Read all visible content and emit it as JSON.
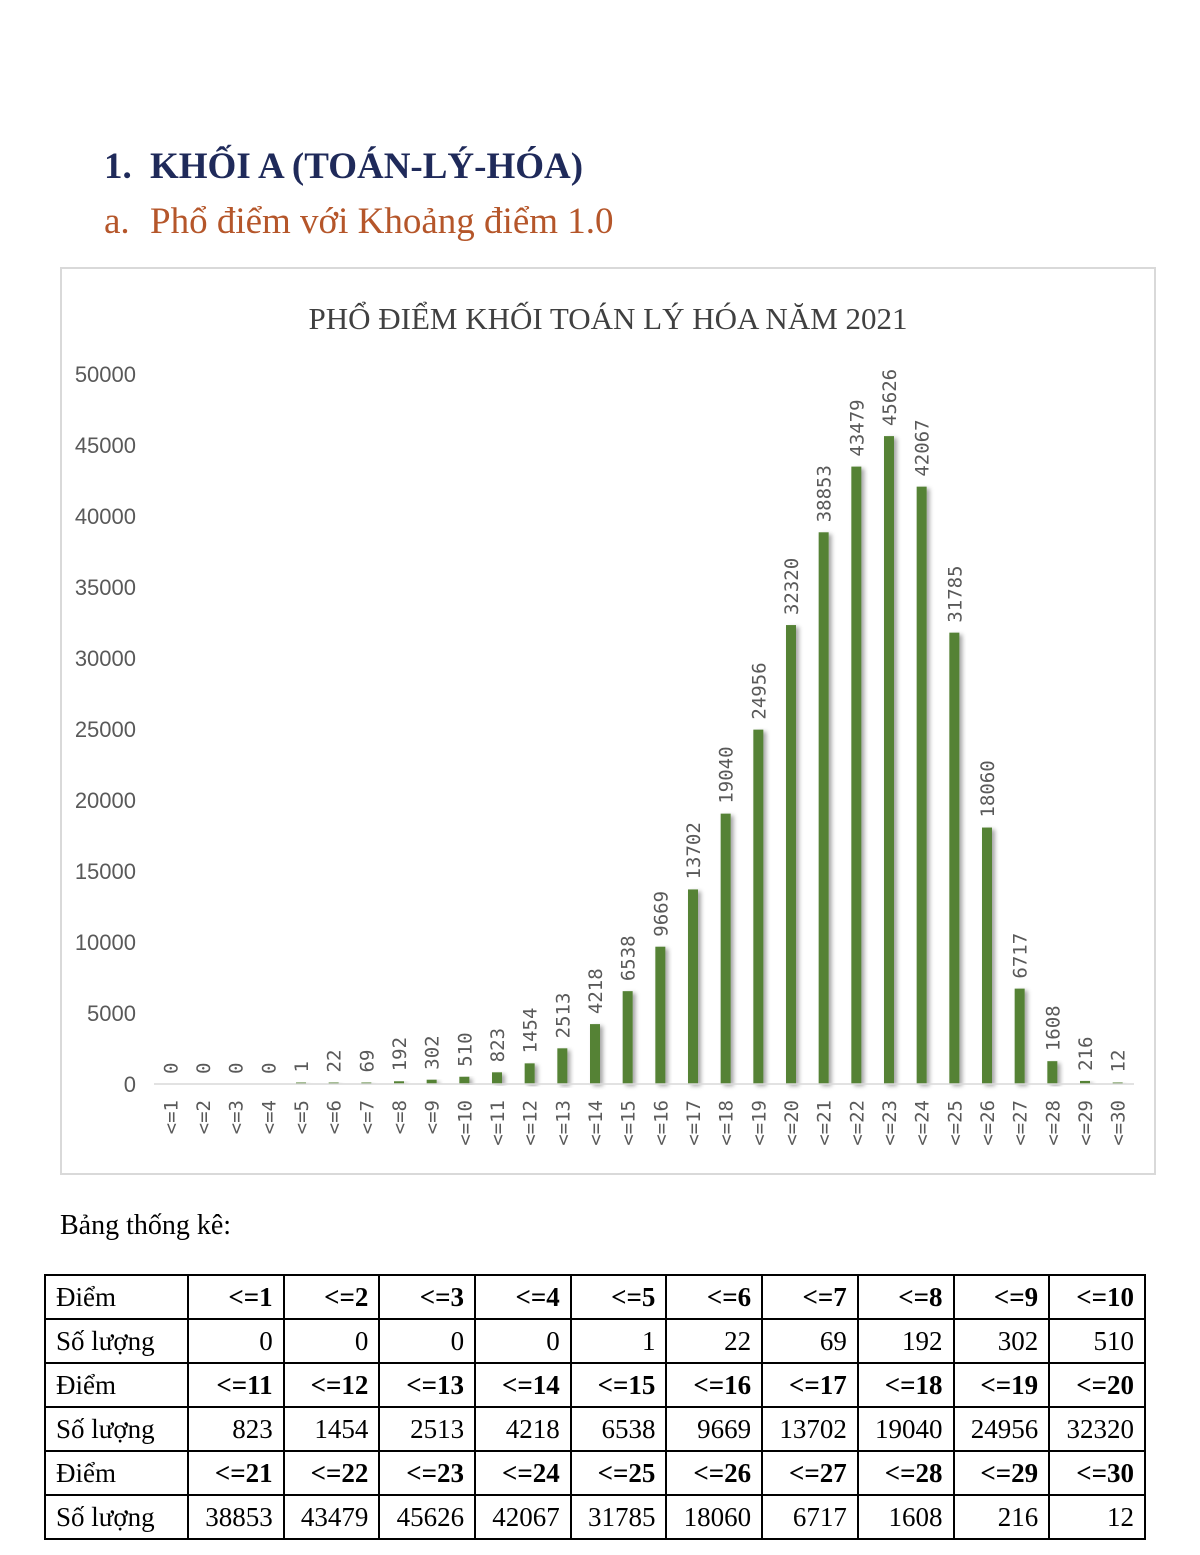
{
  "heading": {
    "number": "1.",
    "text": "KHỐI A (TOÁN-LÝ-HÓA)"
  },
  "subheading": {
    "letter": "a.",
    "text": "Phổ điểm với Khoảng điểm 1.0"
  },
  "chart_data": {
    "type": "bar",
    "title": "PHỔ ĐIỂM KHỐI TOÁN LÝ HÓA NĂM 2021",
    "xlabel": "",
    "ylabel": "",
    "ylim": [
      0,
      50000
    ],
    "yticks": [
      0,
      5000,
      10000,
      15000,
      20000,
      25000,
      30000,
      35000,
      40000,
      45000,
      50000
    ],
    "grid": false,
    "legend": "none",
    "bar_color": "#548235",
    "categories": [
      "<=1",
      "<=2",
      "<=3",
      "<=4",
      "<=5",
      "<=6",
      "<=7",
      "<=8",
      "<=9",
      "<=10",
      "<=11",
      "<=12",
      "<=13",
      "<=14",
      "<=15",
      "<=16",
      "<=17",
      "<=18",
      "<=19",
      "<=20",
      "<=21",
      "<=22",
      "<=23",
      "<=24",
      "<=25",
      "<=26",
      "<=27",
      "<=28",
      "<=29",
      "<=30"
    ],
    "values": [
      0,
      0,
      0,
      0,
      1,
      22,
      69,
      192,
      302,
      510,
      823,
      1454,
      2513,
      4218,
      6538,
      9669,
      13702,
      19040,
      24956,
      32320,
      38853,
      43479,
      45626,
      42067,
      31785,
      18060,
      6717,
      1608,
      216,
      12
    ]
  },
  "table": {
    "caption": "Bảng thống kê:",
    "score_label": "Điểm",
    "count_label": "Số lượng",
    "groups": [
      {
        "scores": [
          "<=1",
          "<=2",
          "<=3",
          "<=4",
          "<=5",
          "<=6",
          "<=7",
          "<=8",
          "<=9",
          "<=10"
        ],
        "counts": [
          "0",
          "0",
          "0",
          "0",
          "1",
          "22",
          "69",
          "192",
          "302",
          "510"
        ]
      },
      {
        "scores": [
          "<=11",
          "<=12",
          "<=13",
          "<=14",
          "<=15",
          "<=16",
          "<=17",
          "<=18",
          "<=19",
          "<=20"
        ],
        "counts": [
          "823",
          "1454",
          "2513",
          "4218",
          "6538",
          "9669",
          "13702",
          "19040",
          "24956",
          "32320"
        ]
      },
      {
        "scores": [
          "<=21",
          "<=22",
          "<=23",
          "<=24",
          "<=25",
          "<=26",
          "<=27",
          "<=28",
          "<=29",
          "<=30"
        ],
        "counts": [
          "38853",
          "43479",
          "45626",
          "42067",
          "31785",
          "18060",
          "6717",
          "1608",
          "216",
          "12"
        ]
      }
    ]
  }
}
